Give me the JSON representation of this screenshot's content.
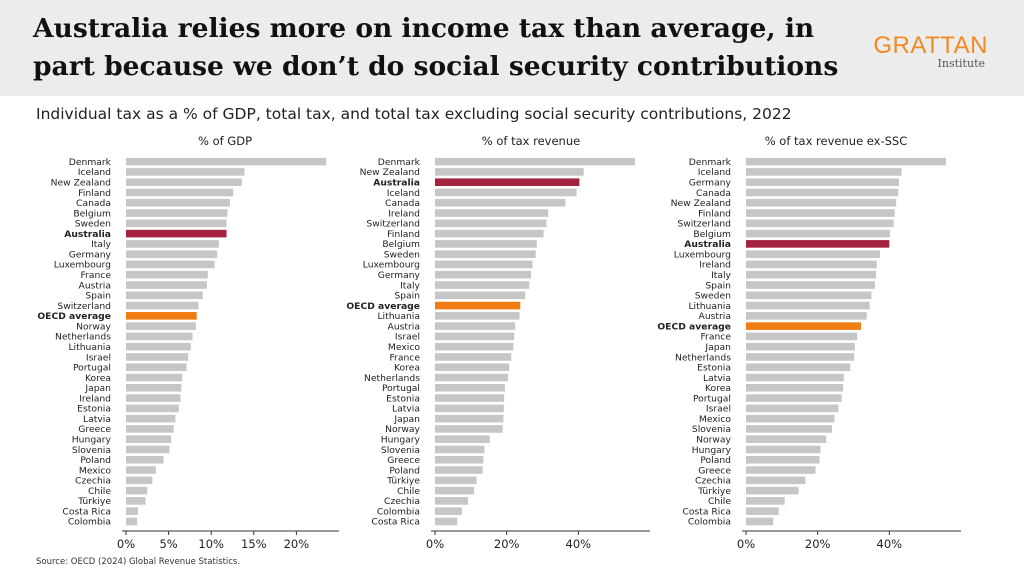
{
  "header": {
    "title": "Australia relies more on income tax than average, in part because we don’t do social security contributions",
    "logo_name": "GRATTAN",
    "logo_sub": "Institute"
  },
  "subtitle": "Individual tax as a % of GDP, total tax, and total tax excluding social security contributions, 2022",
  "source": "Source: OECD (2024) Global Revenue Statistics.",
  "colors": {
    "bar_default": "#c6c6c6",
    "bar_australia": "#a3233f",
    "bar_oecd": "#f07c14",
    "logo": "#f08a21",
    "header_bg": "#ececec"
  },
  "chart_data": [
    {
      "type": "bar",
      "orientation": "horizontal",
      "title": "% of GDP",
      "xlim": [
        0,
        25
      ],
      "xticks": [
        0,
        5,
        10,
        15,
        20
      ],
      "xtick_labels": [
        "0%",
        "5%",
        "10%",
        "15%",
        "20%"
      ],
      "grid": false,
      "highlight": {
        "Australia": "australia",
        "OECD average": "oecd"
      },
      "categories": [
        "Denmark",
        "Iceland",
        "New Zealand",
        "Finland",
        "Canada",
        "Belgium",
        "Sweden",
        "Australia",
        "Italy",
        "Germany",
        "Luxembourg",
        "France",
        "Austria",
        "Spain",
        "Switzerland",
        "OECD average",
        "Norway",
        "Netherlands",
        "Lithuania",
        "Israel",
        "Portugal",
        "Korea",
        "Japan",
        "Ireland",
        "Estonia",
        "Latvia",
        "Greece",
        "Hungary",
        "Slovenia",
        "Poland",
        "Mexico",
        "Czechia",
        "Chile",
        "Türkiye",
        "Costa Rica",
        "Colombia"
      ],
      "values": [
        23.5,
        13.9,
        13.6,
        12.6,
        12.2,
        11.9,
        11.8,
        11.8,
        10.9,
        10.7,
        10.4,
        9.6,
        9.5,
        9.0,
        8.5,
        8.3,
        8.2,
        7.8,
        7.6,
        7.3,
        7.1,
        6.6,
        6.5,
        6.4,
        6.2,
        5.8,
        5.6,
        5.3,
        5.1,
        4.4,
        3.5,
        3.1,
        2.5,
        2.3,
        1.4,
        1.3
      ]
    },
    {
      "type": "bar",
      "orientation": "horizontal",
      "title": "% of tax revenue",
      "xlim": [
        0,
        60
      ],
      "xticks": [
        0,
        20,
        40
      ],
      "xtick_labels": [
        "0%",
        "20%",
        "40%"
      ],
      "grid": false,
      "highlight": {
        "Australia": "australia",
        "OECD average": "oecd"
      },
      "categories": [
        "Denmark",
        "New Zealand",
        "Australia",
        "Iceland",
        "Canada",
        "Ireland",
        "Switzerland",
        "Finland",
        "Belgium",
        "Sweden",
        "Luxembourg",
        "Germany",
        "Italy",
        "Spain",
        "OECD average",
        "Lithuania",
        "Austria",
        "Israel",
        "Mexico",
        "France",
        "Korea",
        "Netherlands",
        "Portugal",
        "Estonia",
        "Latvia",
        "Japan",
        "Norway",
        "Hungary",
        "Slovenia",
        "Greece",
        "Poland",
        "Türkiye",
        "Chile",
        "Czechia",
        "Colombia",
        "Costa Rica"
      ],
      "values": [
        55.8,
        41.5,
        40.3,
        39.5,
        36.4,
        31.6,
        31.1,
        30.3,
        28.4,
        28.1,
        27.2,
        26.8,
        26.3,
        25.2,
        23.8,
        23.6,
        22.4,
        22.1,
        21.9,
        21.3,
        20.7,
        20.4,
        19.5,
        19.3,
        19.2,
        19.1,
        18.9,
        15.3,
        13.8,
        13.5,
        13.3,
        11.6,
        10.9,
        9.2,
        7.5,
        6.2
      ]
    },
    {
      "type": "bar",
      "orientation": "horizontal",
      "title": "% of tax revenue ex-SSC",
      "xlim": [
        0,
        60
      ],
      "xticks": [
        0,
        20,
        40
      ],
      "xtick_labels": [
        "0%",
        "20%",
        "40%"
      ],
      "grid": false,
      "highlight": {
        "Australia": "australia",
        "OECD average": "oecd"
      },
      "categories": [
        "Denmark",
        "Iceland",
        "Germany",
        "Canada",
        "New Zealand",
        "Finland",
        "Switzerland",
        "Belgium",
        "Australia",
        "Luxembourg",
        "Ireland",
        "Italy",
        "Spain",
        "Sweden",
        "Lithuania",
        "Austria",
        "OECD average",
        "France",
        "Japan",
        "Netherlands",
        "Estonia",
        "Latvia",
        "Korea",
        "Portugal",
        "Israel",
        "Mexico",
        "Slovenia",
        "Norway",
        "Hungary",
        "Poland",
        "Greece",
        "Czechia",
        "Türkiye",
        "Chile",
        "Costa Rica",
        "Colombia"
      ],
      "values": [
        55.8,
        43.4,
        42.7,
        42.5,
        41.9,
        41.5,
        41.2,
        40.2,
        40.0,
        37.4,
        36.5,
        36.3,
        36.0,
        35.0,
        34.5,
        33.7,
        32.1,
        31.0,
        30.4,
        30.2,
        29.1,
        27.3,
        27.1,
        26.7,
        25.8,
        24.7,
        24.0,
        22.4,
        20.8,
        20.5,
        19.4,
        16.6,
        14.7,
        10.8,
        9.1,
        7.6
      ]
    }
  ]
}
